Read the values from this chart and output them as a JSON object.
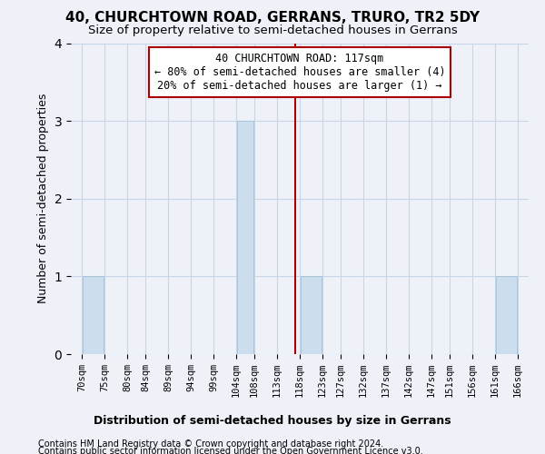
{
  "title": "40, CHURCHTOWN ROAD, GERRANS, TRURO, TR2 5DY",
  "subtitle": "Size of property relative to semi-detached houses in Gerrans",
  "xlabel": "Distribution of semi-detached houses by size in Gerrans",
  "ylabel": "Number of semi-detached properties",
  "footer_line1": "Contains HM Land Registry data © Crown copyright and database right 2024.",
  "footer_line2": "Contains public sector information licensed under the Open Government Licence v3.0.",
  "bins": [
    70,
    75,
    80,
    84,
    89,
    94,
    99,
    104,
    108,
    113,
    118,
    123,
    127,
    132,
    137,
    142,
    147,
    151,
    156,
    161,
    166
  ],
  "bin_labels": [
    "70sqm",
    "75sqm",
    "80sqm",
    "84sqm",
    "89sqm",
    "94sqm",
    "99sqm",
    "104sqm",
    "108sqm",
    "113sqm",
    "118sqm",
    "123sqm",
    "127sqm",
    "132sqm",
    "137sqm",
    "142sqm",
    "147sqm",
    "151sqm",
    "156sqm",
    "161sqm",
    "166sqm"
  ],
  "counts": [
    1,
    0,
    0,
    0,
    0,
    0,
    0,
    3,
    0,
    0,
    1,
    0,
    0,
    0,
    0,
    0,
    0,
    0,
    0,
    1,
    0
  ],
  "bar_color": "#ccdded",
  "bar_edgecolor": "#a8c4d8",
  "property_size": 117,
  "property_line_color": "#aa0000",
  "annotation_text": "40 CHURCHTOWN ROAD: 117sqm\n← 80% of semi-detached houses are smaller (4)\n20% of semi-detached houses are larger (1) →",
  "annotation_box_edgecolor": "#aa0000",
  "annotation_box_facecolor": "#ffffff",
  "grid_color": "#c8d4e8",
  "background_color": "#eef2f8",
  "ylim": [
    0,
    4
  ],
  "yticks": [
    0,
    1,
    2,
    3,
    4
  ],
  "title_fontsize": 11,
  "subtitle_fontsize": 9.5
}
